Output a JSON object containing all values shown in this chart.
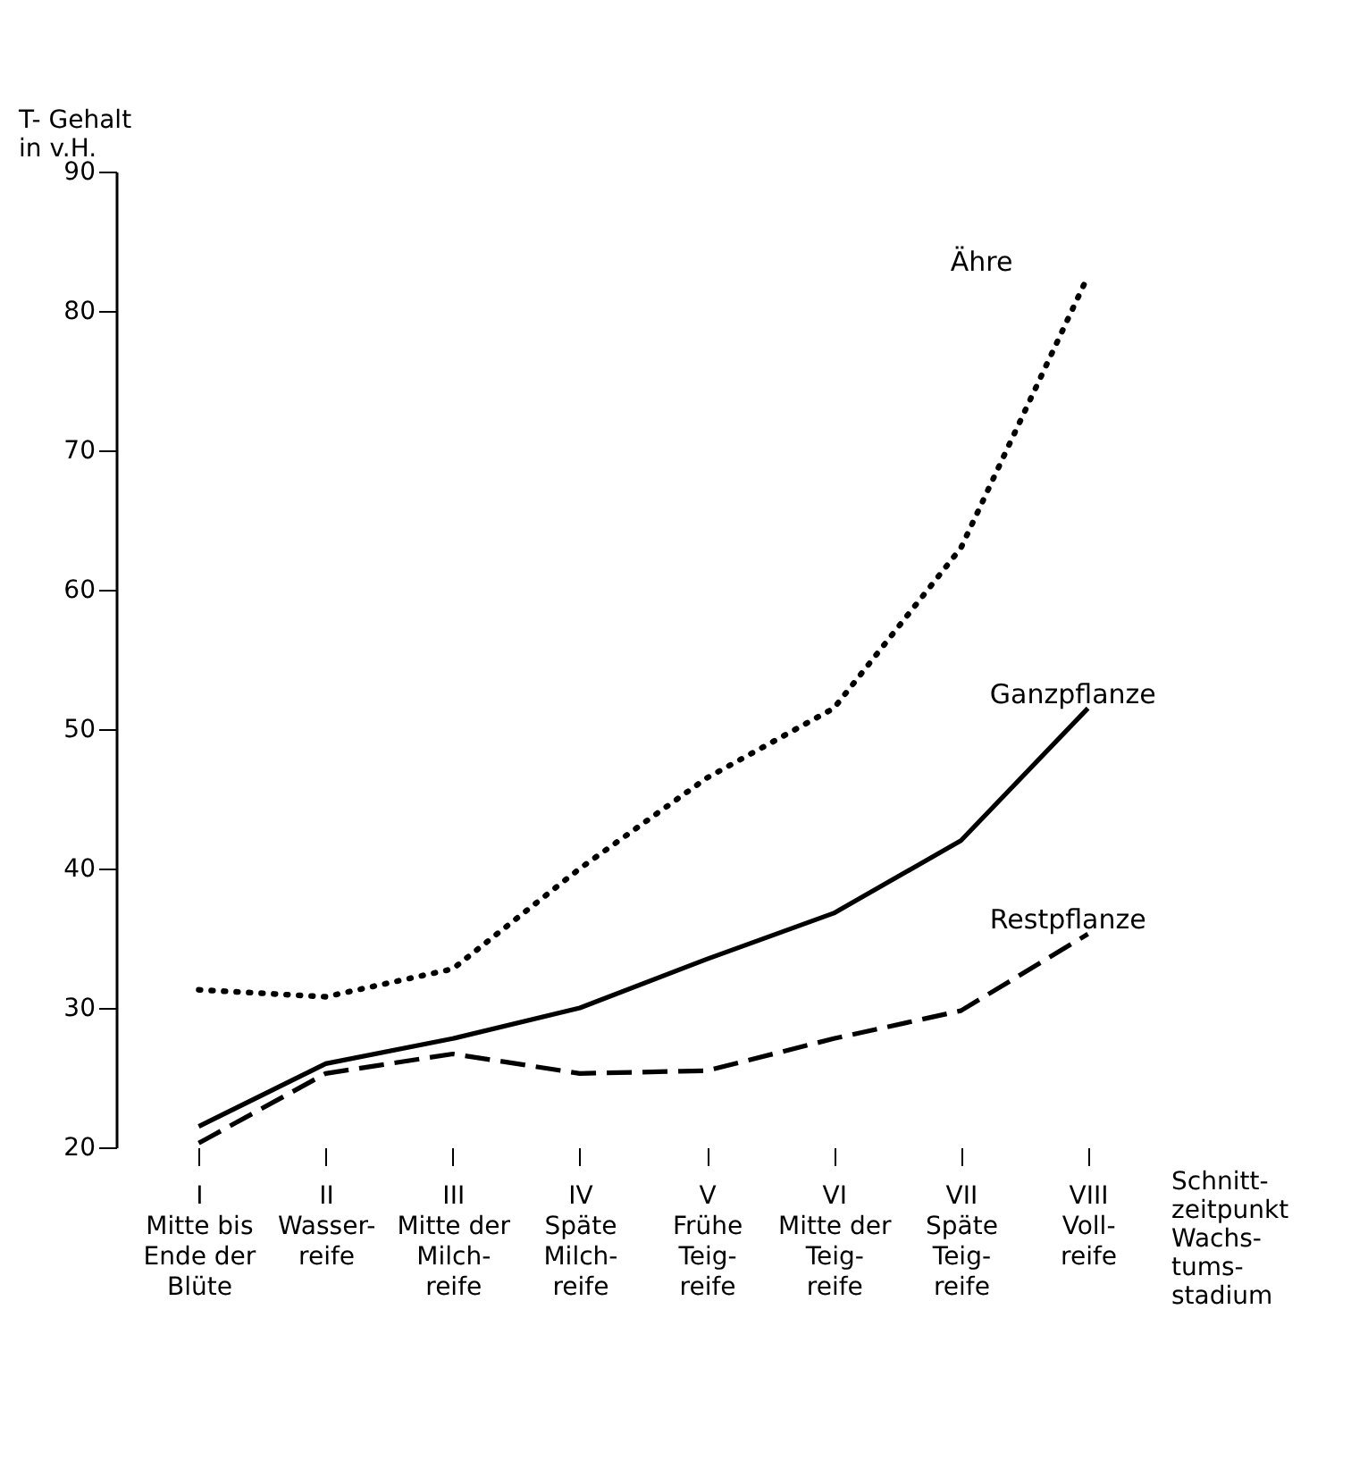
{
  "chart_data": {
    "type": "line",
    "ylabel": "T- Gehalt\nin v.H.",
    "xlabel": "Schnitt-\nzeitpunkt\n\n\nWachs-\ntums-\nstadium",
    "categories": [
      "I\n\n\nMitte bis\nEnde der\nBlüte",
      "II\n\n\nWasser-\nreife",
      "III\n\n\nMitte der\nMilch-\nreife",
      "IV\n\n\nSpäte\nMilch-\nreife",
      "V\n\n\nFrühe\nTeig-\nreife",
      "VI\n\n\nMitte der\nTeig-\nreife",
      "VII\n\n\nSpäte\nTeig-\nreife",
      "VIII\n\n\nVoll-\nreife"
    ],
    "ylim": [
      20,
      90
    ],
    "yticks": [
      20,
      30,
      40,
      50,
      60,
      70,
      80,
      90
    ],
    "grid": false,
    "marker": "none",
    "series": [
      {
        "name": "Ähre",
        "color": "#000000",
        "line_style": "dotted",
        "values": [
          31.3,
          30.8,
          32.8,
          40,
          46.5,
          51.5,
          63,
          82.5
        ]
      },
      {
        "name": "Ganzpflanze",
        "color": "#000000",
        "line_style": "solid",
        "values": [
          21.5,
          26,
          27.8,
          30,
          33.5,
          36.8,
          42,
          51.5
        ]
      },
      {
        "name": "Restpflanze",
        "color": "#000000",
        "line_style": "dashed",
        "values": [
          20.3,
          25.3,
          26.7,
          25.3,
          25.5,
          27.8,
          29.8,
          35.3
        ]
      }
    ]
  }
}
